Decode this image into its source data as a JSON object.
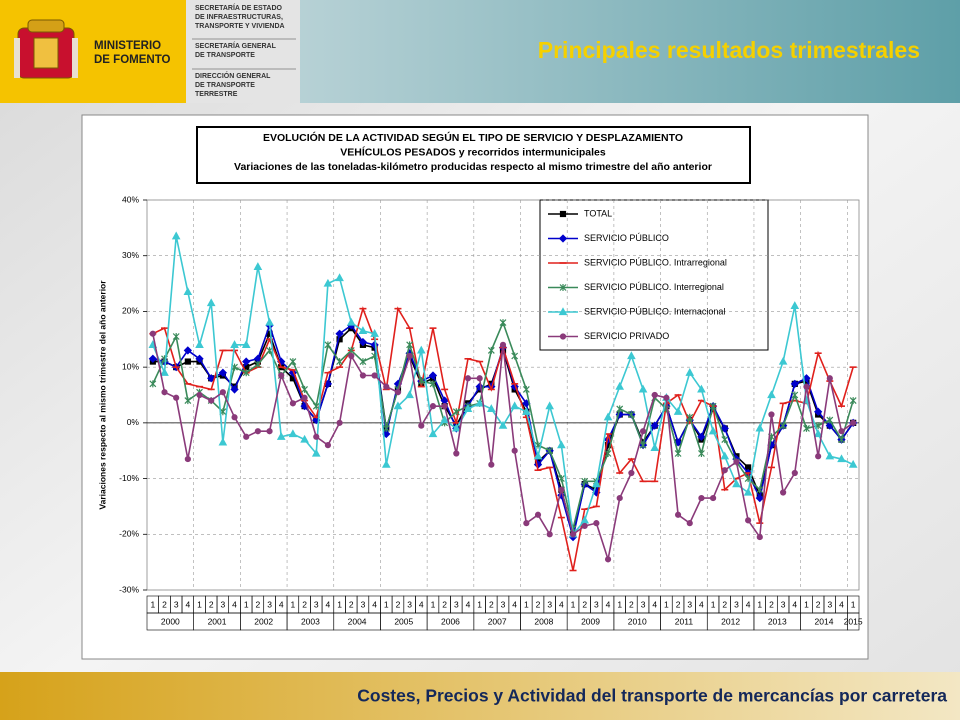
{
  "header": {
    "ministry": [
      "MINISTERIO",
      "DE FOMENTO"
    ],
    "units": [
      [
        "SECRETARÍA DE ESTADO",
        "DE INFRAESTRUCTURAS,",
        "TRANSPORTE Y VIVIENDA"
      ],
      [
        "SECRETARÍA GENERAL",
        "DE TRANSPORTE"
      ],
      [
        "DIRECCIÓN GENERAL",
        "DE TRANSPORTE",
        "TERRESTRE"
      ]
    ],
    "title": "Principales resultados trimestrales"
  },
  "footer": "Costes, Precios y Actividad del transporte de mercancías por carretera",
  "chart_data": {
    "type": "line",
    "title": [
      "EVOLUCIÓN DE LA ACTIVIDAD SEGÚN EL TIPO DE SERVICIO Y DESPLAZAMIENTO",
      "VEHÍCULOS PESADOS y recorridos intermunicipales",
      "Variaciones de las toneladas-kilómetro producidas respecto al mismo trimestre del año anterior"
    ],
    "y_label": "Variaciones respecto al mismo trimestre del año anterior",
    "categories": [
      "1",
      "2",
      "3",
      "4",
      "1",
      "2",
      "3",
      "4",
      "1",
      "2",
      "3",
      "4",
      "1",
      "2",
      "3",
      "4",
      "1",
      "2",
      "3",
      "4",
      "1",
      "2",
      "3",
      "4",
      "1",
      "2",
      "3",
      "4",
      "1",
      "2",
      "3",
      "4",
      "1",
      "2",
      "3",
      "4",
      "1",
      "2",
      "3",
      "4",
      "1",
      "2",
      "3",
      "4",
      "1",
      "2",
      "3",
      "4",
      "1",
      "2",
      "3",
      "4",
      "1",
      "2",
      "3",
      "4",
      "1",
      "2",
      "3",
      "4",
      "1"
    ],
    "years": [
      "2000",
      "2001",
      "2002",
      "2003",
      "2004",
      "2005",
      "2006",
      "2007",
      "2008",
      "2009",
      "2010",
      "2011",
      "2012",
      "2013",
      "2014",
      "2015"
    ],
    "ylim": [
      -30,
      40
    ],
    "yticks": [
      {
        "value": -30,
        "label": "-30%"
      },
      {
        "value": -20,
        "label": "-20%"
      },
      {
        "value": -10,
        "label": "-10%"
      },
      {
        "value": 0,
        "label": "0%"
      },
      {
        "value": 10,
        "label": "10%"
      },
      {
        "value": 20,
        "label": "20%"
      },
      {
        "value": 30,
        "label": "30%"
      },
      {
        "value": 40,
        "label": "40%"
      }
    ],
    "grid": true,
    "legend": "upper-right",
    "series": [
      {
        "name": "TOTAL",
        "color": "#000000",
        "marker": "square",
        "values": [
          11,
          11,
          10,
          11,
          11,
          8,
          8.5,
          6.5,
          10,
          11,
          16,
          10,
          8,
          3,
          0.5,
          7,
          15,
          17,
          14,
          13.5,
          -1,
          6,
          12,
          7,
          8,
          3,
          -0.5,
          3.5,
          6,
          7,
          13,
          6,
          2,
          -7,
          -5,
          -12,
          -20,
          -11,
          -12,
          -4,
          1.5,
          1.5,
          -3.5,
          -0.5,
          3,
          -3.5,
          0.5,
          -3,
          2.5,
          -1,
          -6,
          -8,
          -13,
          -4,
          -0.5,
          7,
          7.5,
          1.5,
          -0.5,
          -3,
          0
        ]
      },
      {
        "name": "SERVICIO PÚBLICO",
        "color": "#0000cc",
        "marker": "diamond",
        "values": [
          11.5,
          11,
          10,
          13,
          11.5,
          8,
          9,
          6,
          11,
          11.5,
          17.5,
          11,
          9,
          3,
          0.5,
          7,
          16,
          17.5,
          14.5,
          14,
          -2,
          7,
          12.5,
          7.5,
          8.5,
          4,
          -1,
          3,
          6.5,
          6.5,
          13.5,
          6.5,
          3.5,
          -7.5,
          -5,
          -13,
          -20.5,
          -11,
          -12.5,
          -3,
          1.5,
          1.5,
          -4,
          -0.5,
          3,
          -3.5,
          0.5,
          -2.5,
          3,
          -1,
          -6.5,
          -9,
          -13.5,
          -4,
          -0.5,
          7,
          8,
          2,
          -0.5,
          -3,
          0
        ]
      },
      {
        "name": "SERVICIO PÚBLICO. Intrarregional",
        "color": "#e0201c",
        "marker": "dash",
        "values": [
          16,
          17,
          10,
          7,
          6.5,
          6,
          13,
          13,
          9,
          10,
          15,
          10,
          9.5,
          4,
          1,
          9,
          10,
          13,
          20.5,
          15,
          6,
          20.5,
          17,
          6.5,
          17,
          6,
          0,
          11.5,
          11,
          6,
          13.5,
          7,
          1,
          -8.5,
          -8,
          -17,
          -26.5,
          -15.5,
          -15,
          -2,
          -9,
          -6.5,
          -10.5,
          -10.5,
          3.5,
          5,
          0,
          4,
          3,
          -12,
          -10,
          -9,
          -18,
          -8,
          3.5,
          4,
          3.5,
          12.5,
          7.5,
          3,
          10
        ]
      },
      {
        "name": "SERVICIO PÚBLICO. Interregional",
        "color": "#3a8a5a",
        "marker": "star",
        "values": [
          7,
          11.5,
          15.5,
          4,
          5.5,
          4,
          2,
          10,
          9,
          10.5,
          13,
          8.5,
          11,
          6,
          3,
          14,
          11,
          13,
          11,
          12,
          -1,
          6,
          14,
          7.5,
          7,
          0,
          2,
          3,
          3.5,
          13,
          18,
          12,
          6,
          -4,
          -5,
          -10,
          -19,
          -10.5,
          -10.5,
          -5.5,
          2.5,
          1.5,
          -4,
          4.5,
          2.5,
          -5.5,
          1,
          -5.5,
          3,
          -3,
          -7,
          -10,
          -12,
          -2.5,
          -0.5,
          5,
          -1,
          -0.5,
          0.5,
          -3,
          4
        ]
      },
      {
        "name": "SERVICIO PÚBLICO. Internacional",
        "color": "#3cc8d2",
        "marker": "triangle",
        "values": [
          14,
          9,
          33.5,
          23.5,
          14,
          21.5,
          -3.5,
          14,
          14,
          28,
          18,
          -2.5,
          -2,
          -3,
          -5.5,
          25,
          26,
          18,
          16.5,
          16,
          -7.5,
          3,
          5,
          13,
          -2,
          0.5,
          -1,
          2.5,
          3.5,
          2.5,
          -0.5,
          3,
          2,
          -6,
          3,
          -4,
          -20,
          -17.5,
          -11,
          1,
          6.5,
          12,
          6,
          -4.5,
          4.5,
          2,
          9,
          6,
          -1.5,
          -6,
          -11,
          -12.5,
          -1,
          5,
          11,
          21,
          4,
          -2,
          -6,
          -6.5,
          -7.5
        ]
      },
      {
        "name": "SERVICIO PRIVADO",
        "color": "#8a3a7a",
        "marker": "circle",
        "values": [
          16,
          5.5,
          4.5,
          -6.5,
          5,
          4,
          5.5,
          1,
          -2.5,
          -1.5,
          -1.5,
          8.5,
          3.5,
          4.5,
          -2.5,
          -4,
          0,
          12,
          8.5,
          8.5,
          6.5,
          5.5,
          12,
          -0.5,
          3,
          3,
          -5.5,
          8,
          8,
          -7.5,
          14,
          -5,
          -18,
          -16.5,
          -20,
          -12,
          -20,
          -18.5,
          -18,
          -24.5,
          -13.5,
          -9,
          -1.5,
          5,
          4.5,
          -16.5,
          -18,
          -13.5,
          -13.5,
          -8.5,
          -7,
          -17.5,
          -20.5,
          1.5,
          -12.5,
          -9,
          6.5,
          -6,
          8,
          -1.5,
          0
        ]
      }
    ]
  }
}
